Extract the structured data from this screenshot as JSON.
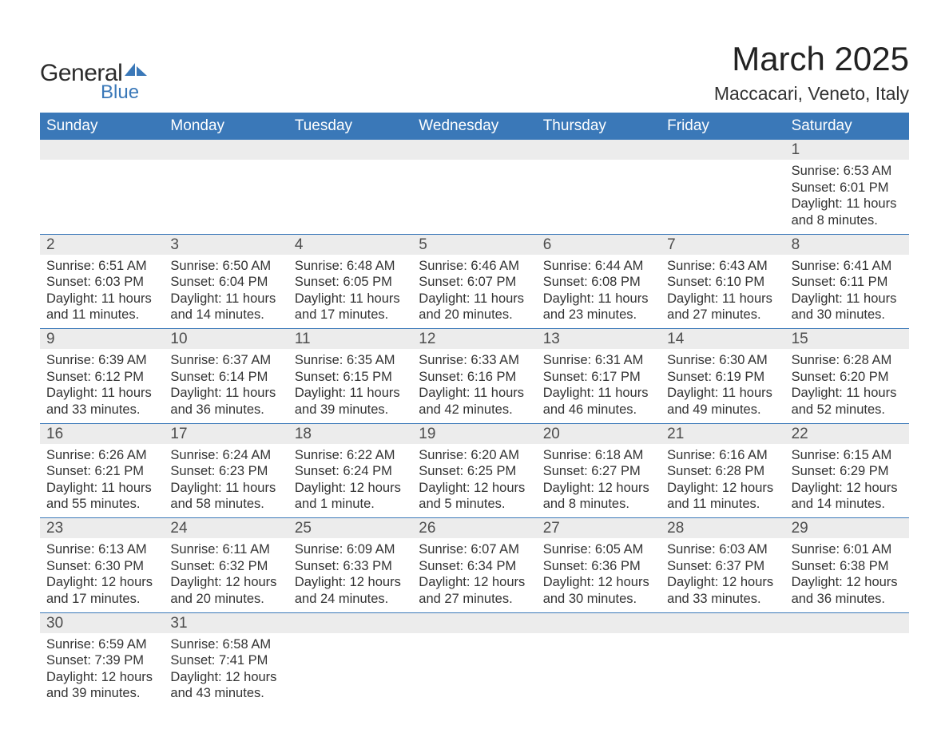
{
  "colors": {
    "header_bg": "#3a78b8",
    "header_text": "#ffffff",
    "daynum_bg": "#ececec",
    "daynum_text": "#4d4d4d",
    "body_text": "#333333",
    "row_border": "#3a78b8",
    "page_bg": "#ffffff",
    "logo_accent": "#3a78b8",
    "logo_text": "#2b2b2b"
  },
  "typography": {
    "title_fontsize": 42,
    "location_fontsize": 23,
    "weekday_fontsize": 19,
    "daynum_fontsize": 19,
    "body_fontsize": 16.5,
    "logo_general_fontsize": 30,
    "logo_blue_fontsize": 24,
    "font_family": "Arial, Helvetica, sans-serif"
  },
  "logo": {
    "text1": "General",
    "text2": "Blue"
  },
  "title": "March 2025",
  "location": "Maccacari, Veneto, Italy",
  "weekdays": [
    "Sunday",
    "Monday",
    "Tuesday",
    "Wednesday",
    "Thursday",
    "Friday",
    "Saturday"
  ],
  "labels": {
    "sunrise": "Sunrise",
    "sunset": "Sunset",
    "daylight": "Daylight"
  },
  "weeks": [
    [
      {
        "day": "",
        "sunrise": "",
        "sunset": "",
        "daylight": ""
      },
      {
        "day": "",
        "sunrise": "",
        "sunset": "",
        "daylight": ""
      },
      {
        "day": "",
        "sunrise": "",
        "sunset": "",
        "daylight": ""
      },
      {
        "day": "",
        "sunrise": "",
        "sunset": "",
        "daylight": ""
      },
      {
        "day": "",
        "sunrise": "",
        "sunset": "",
        "daylight": ""
      },
      {
        "day": "",
        "sunrise": "",
        "sunset": "",
        "daylight": ""
      },
      {
        "day": "1",
        "sunrise": "6:53 AM",
        "sunset": "6:01 PM",
        "daylight": "11 hours and 8 minutes."
      }
    ],
    [
      {
        "day": "2",
        "sunrise": "6:51 AM",
        "sunset": "6:03 PM",
        "daylight": "11 hours and 11 minutes."
      },
      {
        "day": "3",
        "sunrise": "6:50 AM",
        "sunset": "6:04 PM",
        "daylight": "11 hours and 14 minutes."
      },
      {
        "day": "4",
        "sunrise": "6:48 AM",
        "sunset": "6:05 PM",
        "daylight": "11 hours and 17 minutes."
      },
      {
        "day": "5",
        "sunrise": "6:46 AM",
        "sunset": "6:07 PM",
        "daylight": "11 hours and 20 minutes."
      },
      {
        "day": "6",
        "sunrise": "6:44 AM",
        "sunset": "6:08 PM",
        "daylight": "11 hours and 23 minutes."
      },
      {
        "day": "7",
        "sunrise": "6:43 AM",
        "sunset": "6:10 PM",
        "daylight": "11 hours and 27 minutes."
      },
      {
        "day": "8",
        "sunrise": "6:41 AM",
        "sunset": "6:11 PM",
        "daylight": "11 hours and 30 minutes."
      }
    ],
    [
      {
        "day": "9",
        "sunrise": "6:39 AM",
        "sunset": "6:12 PM",
        "daylight": "11 hours and 33 minutes."
      },
      {
        "day": "10",
        "sunrise": "6:37 AM",
        "sunset": "6:14 PM",
        "daylight": "11 hours and 36 minutes."
      },
      {
        "day": "11",
        "sunrise": "6:35 AM",
        "sunset": "6:15 PM",
        "daylight": "11 hours and 39 minutes."
      },
      {
        "day": "12",
        "sunrise": "6:33 AM",
        "sunset": "6:16 PM",
        "daylight": "11 hours and 42 minutes."
      },
      {
        "day": "13",
        "sunrise": "6:31 AM",
        "sunset": "6:17 PM",
        "daylight": "11 hours and 46 minutes."
      },
      {
        "day": "14",
        "sunrise": "6:30 AM",
        "sunset": "6:19 PM",
        "daylight": "11 hours and 49 minutes."
      },
      {
        "day": "15",
        "sunrise": "6:28 AM",
        "sunset": "6:20 PM",
        "daylight": "11 hours and 52 minutes."
      }
    ],
    [
      {
        "day": "16",
        "sunrise": "6:26 AM",
        "sunset": "6:21 PM",
        "daylight": "11 hours and 55 minutes."
      },
      {
        "day": "17",
        "sunrise": "6:24 AM",
        "sunset": "6:23 PM",
        "daylight": "11 hours and 58 minutes."
      },
      {
        "day": "18",
        "sunrise": "6:22 AM",
        "sunset": "6:24 PM",
        "daylight": "12 hours and 1 minute."
      },
      {
        "day": "19",
        "sunrise": "6:20 AM",
        "sunset": "6:25 PM",
        "daylight": "12 hours and 5 minutes."
      },
      {
        "day": "20",
        "sunrise": "6:18 AM",
        "sunset": "6:27 PM",
        "daylight": "12 hours and 8 minutes."
      },
      {
        "day": "21",
        "sunrise": "6:16 AM",
        "sunset": "6:28 PM",
        "daylight": "12 hours and 11 minutes."
      },
      {
        "day": "22",
        "sunrise": "6:15 AM",
        "sunset": "6:29 PM",
        "daylight": "12 hours and 14 minutes."
      }
    ],
    [
      {
        "day": "23",
        "sunrise": "6:13 AM",
        "sunset": "6:30 PM",
        "daylight": "12 hours and 17 minutes."
      },
      {
        "day": "24",
        "sunrise": "6:11 AM",
        "sunset": "6:32 PM",
        "daylight": "12 hours and 20 minutes."
      },
      {
        "day": "25",
        "sunrise": "6:09 AM",
        "sunset": "6:33 PM",
        "daylight": "12 hours and 24 minutes."
      },
      {
        "day": "26",
        "sunrise": "6:07 AM",
        "sunset": "6:34 PM",
        "daylight": "12 hours and 27 minutes."
      },
      {
        "day": "27",
        "sunrise": "6:05 AM",
        "sunset": "6:36 PM",
        "daylight": "12 hours and 30 minutes."
      },
      {
        "day": "28",
        "sunrise": "6:03 AM",
        "sunset": "6:37 PM",
        "daylight": "12 hours and 33 minutes."
      },
      {
        "day": "29",
        "sunrise": "6:01 AM",
        "sunset": "6:38 PM",
        "daylight": "12 hours and 36 minutes."
      }
    ],
    [
      {
        "day": "30",
        "sunrise": "6:59 AM",
        "sunset": "7:39 PM",
        "daylight": "12 hours and 39 minutes."
      },
      {
        "day": "31",
        "sunrise": "6:58 AM",
        "sunset": "7:41 PM",
        "daylight": "12 hours and 43 minutes."
      },
      {
        "day": "",
        "sunrise": "",
        "sunset": "",
        "daylight": ""
      },
      {
        "day": "",
        "sunrise": "",
        "sunset": "",
        "daylight": ""
      },
      {
        "day": "",
        "sunrise": "",
        "sunset": "",
        "daylight": ""
      },
      {
        "day": "",
        "sunrise": "",
        "sunset": "",
        "daylight": ""
      },
      {
        "day": "",
        "sunrise": "",
        "sunset": "",
        "daylight": ""
      }
    ]
  ]
}
